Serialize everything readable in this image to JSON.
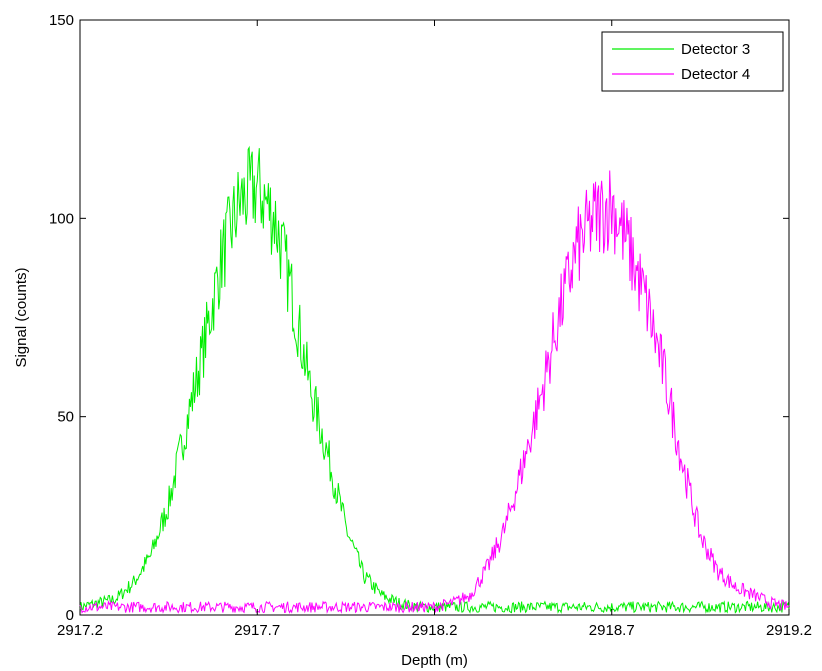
{
  "chart_data": {
    "type": "line",
    "title": "",
    "xlabel": "Depth (m)",
    "ylabel": "Signal (counts)",
    "xlim": [
      2917.2,
      2919.2
    ],
    "ylim": [
      0,
      150
    ],
    "xticks": [
      2917.2,
      2917.7,
      2918.2,
      2918.7,
      2919.2
    ],
    "xtick_labels": [
      "2917.2",
      "2917.7",
      "2918.2",
      "2918.7",
      "2919.2"
    ],
    "yticks": [
      0,
      50,
      100,
      150
    ],
    "ytick_labels": [
      "0",
      "50",
      "100",
      "150"
    ],
    "grid": false,
    "legend": {
      "position": "top-right"
    },
    "series": [
      {
        "name": "Detector 3",
        "color": "#00ee00",
        "x": [
          2917.2,
          2917.25,
          2917.3,
          2917.35,
          2917.4,
          2917.45,
          2917.5,
          2917.55,
          2917.6,
          2917.65,
          2917.7,
          2917.75,
          2917.8,
          2917.85,
          2917.9,
          2917.95,
          2918.0,
          2918.05,
          2918.1,
          2918.15,
          2918.2,
          2918.3,
          2918.4,
          2918.5,
          2918.6,
          2918.7,
          2918.8,
          2918.9,
          2919.0,
          2919.1,
          2919.2
        ],
        "values": [
          2,
          3,
          4,
          8,
          15,
          28,
          48,
          68,
          90,
          104,
          108,
          100,
          80,
          57,
          40,
          22,
          10,
          5,
          3,
          2,
          2,
          2,
          2,
          2,
          2,
          2,
          2,
          2,
          2,
          2,
          2
        ]
      },
      {
        "name": "Detector 4",
        "color": "#ff00ff",
        "x": [
          2917.2,
          2917.4,
          2917.6,
          2917.8,
          2918.0,
          2918.1,
          2918.2,
          2918.25,
          2918.3,
          2918.35,
          2918.4,
          2918.45,
          2918.5,
          2918.55,
          2918.6,
          2918.65,
          2918.7,
          2918.75,
          2918.8,
          2918.85,
          2918.9,
          2918.95,
          2919.0,
          2919.05,
          2919.1,
          2919.15,
          2919.2
        ],
        "values": [
          2,
          2,
          2,
          2,
          2,
          2,
          2,
          3,
          5,
          12,
          22,
          38,
          55,
          75,
          92,
          100,
          104,
          92,
          78,
          60,
          38,
          20,
          11,
          7,
          5,
          3,
          2
        ]
      }
    ]
  }
}
